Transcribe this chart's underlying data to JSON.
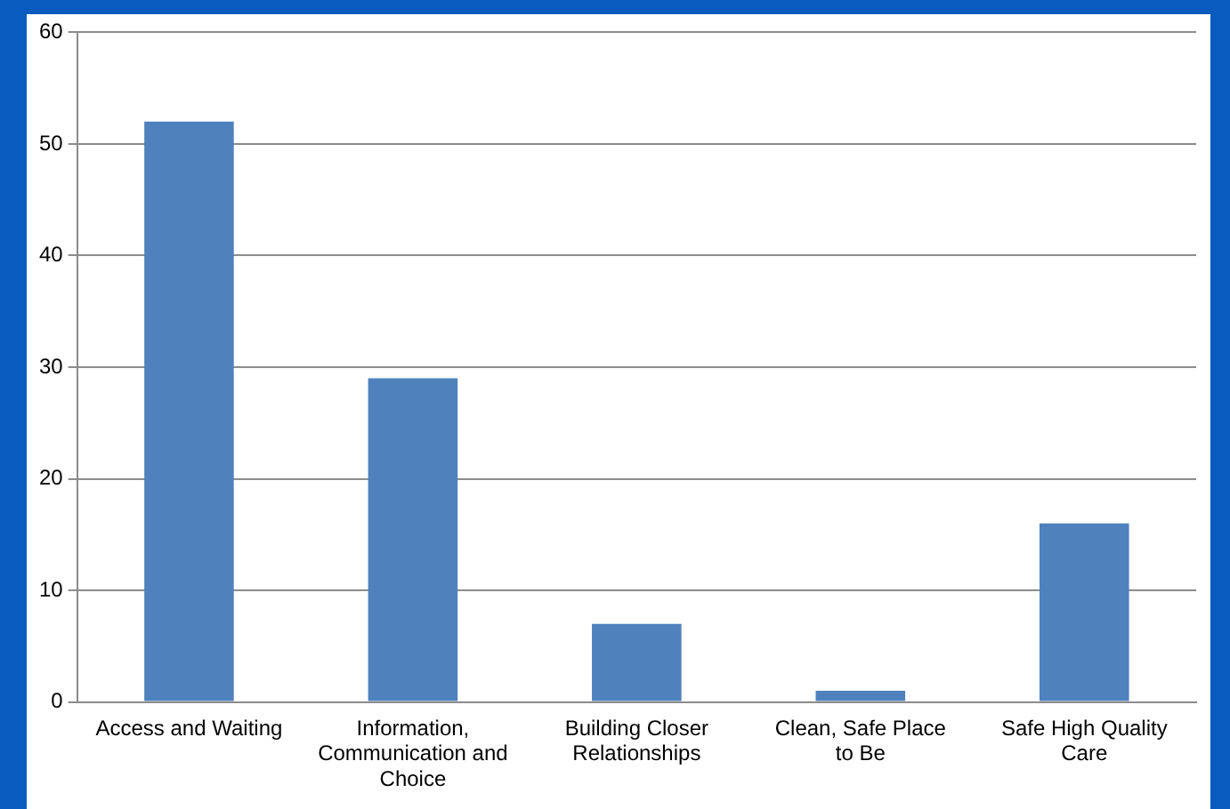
{
  "chart_data": {
    "type": "bar",
    "categories": [
      "Access and Waiting",
      "Information, Communication and Choice",
      "Building Closer Relationships",
      "Clean, Safe Place to Be",
      "Safe High Quality Care"
    ],
    "values": [
      52,
      29,
      7,
      1,
      16
    ],
    "color": "#4f81bd",
    "ylim": [
      0,
      60
    ],
    "yticks": [
      0,
      10,
      20,
      30,
      40,
      50,
      60
    ],
    "grid": "y",
    "legend": false
  }
}
